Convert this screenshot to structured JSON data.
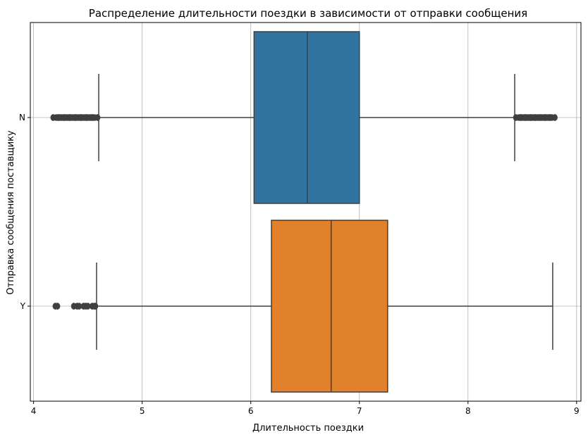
{
  "chart_data": {
    "type": "boxplot",
    "orientation": "horizontal",
    "title": "Распределение длительности поездки в зависимости от отправки сообщения",
    "xlabel": "Длительность поездки",
    "ylabel": "Отправка сообщения поставщику",
    "xlim": [
      3.97,
      9.04
    ],
    "xticks": [
      4,
      5,
      6,
      7,
      8,
      9
    ],
    "grid": true,
    "categories": [
      "N",
      "Y"
    ],
    "series": [
      {
        "category": "N",
        "color": "#3274a1",
        "whisker_low": 4.6,
        "q1": 6.03,
        "median": 6.52,
        "q3": 7.0,
        "whisker_high": 8.43,
        "outliers_low_range": [
          4.18,
          4.59
        ],
        "outliers_high_range": [
          8.44,
          8.8
        ]
      },
      {
        "category": "Y",
        "color": "#e1812c",
        "whisker_low": 4.58,
        "q1": 6.19,
        "median": 6.74,
        "q3": 7.26,
        "whisker_high": 8.78,
        "outliers": [
          4.2,
          4.22,
          4.37,
          4.4,
          4.42,
          4.46,
          4.48,
          4.5,
          4.54,
          4.56,
          4.57
        ]
      }
    ]
  }
}
